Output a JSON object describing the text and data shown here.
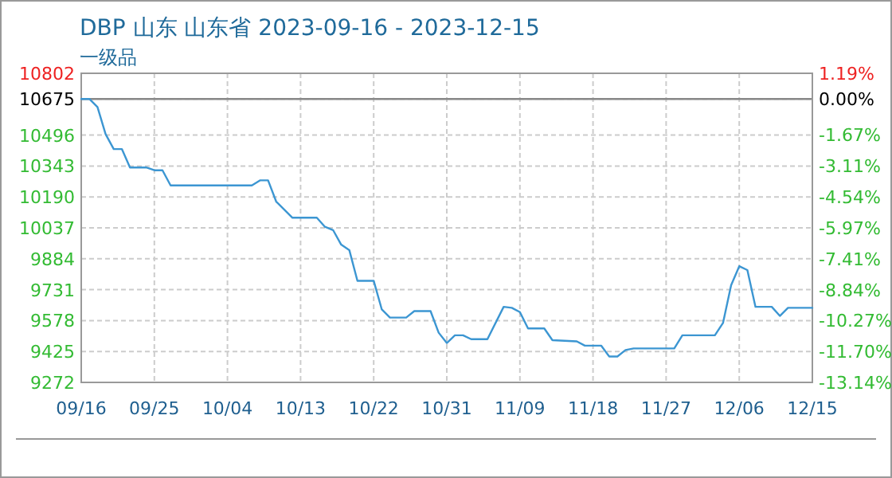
{
  "chart_data": {
    "type": "line",
    "title": "DBP 山东 山东省 2023-09-16 - 2023-12-15",
    "subtitle": "一级品",
    "x": [
      "2023-09-16",
      "2023-09-17",
      "2023-09-18",
      "2023-09-19",
      "2023-09-20",
      "2023-09-21",
      "2023-09-22",
      "2023-09-24",
      "2023-09-25",
      "2023-09-26",
      "2023-09-27",
      "2023-10-07",
      "2023-10-08",
      "2023-10-09",
      "2023-10-10",
      "2023-10-12",
      "2023-10-15",
      "2023-10-16",
      "2023-10-17",
      "2023-10-18",
      "2023-10-19",
      "2023-10-20",
      "2023-10-22",
      "2023-10-23",
      "2023-10-24",
      "2023-10-26",
      "2023-10-27",
      "2023-10-29",
      "2023-10-30",
      "2023-10-31",
      "2023-11-01",
      "2023-11-02",
      "2023-11-03",
      "2023-11-05",
      "2023-11-07",
      "2023-11-08",
      "2023-11-09",
      "2023-11-10",
      "2023-11-12",
      "2023-11-13",
      "2023-11-16",
      "2023-11-17",
      "2023-11-19",
      "2023-11-20",
      "2023-11-21",
      "2023-11-22",
      "2023-11-23",
      "2023-11-28",
      "2023-11-29",
      "2023-12-03",
      "2023-12-04",
      "2023-12-05",
      "2023-12-06",
      "2023-12-07",
      "2023-12-08",
      "2023-12-10",
      "2023-12-11",
      "2023-12-12",
      "2023-12-15"
    ],
    "series": [
      {
        "color": "#3c96d2",
        "values": [
          10675,
          10675,
          10635,
          10501,
          10427,
          10427,
          10336,
          10336,
          10322,
          10322,
          10247,
          10247,
          10272,
          10272,
          10167,
          10087,
          10087,
          10042,
          10026,
          9954,
          9927,
          9775,
          9775,
          9633,
          9593,
          9593,
          9625,
          9625,
          9518,
          9467,
          9505,
          9505,
          9486,
          9486,
          9646,
          9641,
          9620,
          9539,
          9539,
          9481,
          9475,
          9454,
          9454,
          9400,
          9400,
          9432,
          9440,
          9440,
          9505,
          9505,
          9566,
          9753,
          9847,
          9828,
          9646,
          9646,
          9601,
          9641,
          9641
        ]
      }
    ],
    "xlim": [
      "2023-09-16",
      "2023-12-15"
    ],
    "xticks": [
      {
        "value": "2023-09-16",
        "label": "09/16"
      },
      {
        "value": "2023-09-25",
        "label": "09/25"
      },
      {
        "value": "2023-10-04",
        "label": "10/04"
      },
      {
        "value": "2023-10-13",
        "label": "10/13"
      },
      {
        "value": "2023-10-22",
        "label": "10/22"
      },
      {
        "value": "2023-10-31",
        "label": "10/31"
      },
      {
        "value": "2023-11-09",
        "label": "11/09"
      },
      {
        "value": "2023-11-18",
        "label": "11/18"
      },
      {
        "value": "2023-11-27",
        "label": "11/27"
      },
      {
        "value": "2023-12-06",
        "label": "12/06"
      },
      {
        "value": "2023-12-15",
        "label": "12/15"
      }
    ],
    "ylim": [
      9272,
      10802
    ],
    "yticks": [
      9272,
      9425,
      9578,
      9731,
      9884,
      10037,
      10190,
      10343,
      10496,
      10675,
      10802
    ],
    "y2lim": [
      -13.14,
      1.19
    ],
    "y2ticks": [
      {
        "value": -13.14,
        "label": "-13.14%"
      },
      {
        "value": -11.7,
        "label": "-11.70%"
      },
      {
        "value": -10.27,
        "label": "-10.27%"
      },
      {
        "value": -8.84,
        "label": "-8.84%"
      },
      {
        "value": -7.41,
        "label": "-7.41%"
      },
      {
        "value": -5.97,
        "label": "-5.97%"
      },
      {
        "value": -4.54,
        "label": "-4.54%"
      },
      {
        "value": -3.11,
        "label": "-3.11%"
      },
      {
        "value": -1.67,
        "label": "-1.67%"
      },
      {
        "value": 0,
        "label": "0.00%"
      },
      {
        "value": 1.19,
        "label": "1.19%"
      }
    ],
    "ref_lines": [
      {
        "axis": "y",
        "value": 10675,
        "color": "#888888",
        "line_style": "solid"
      }
    ],
    "grid": true,
    "marker": "none",
    "line_style": "solid"
  }
}
